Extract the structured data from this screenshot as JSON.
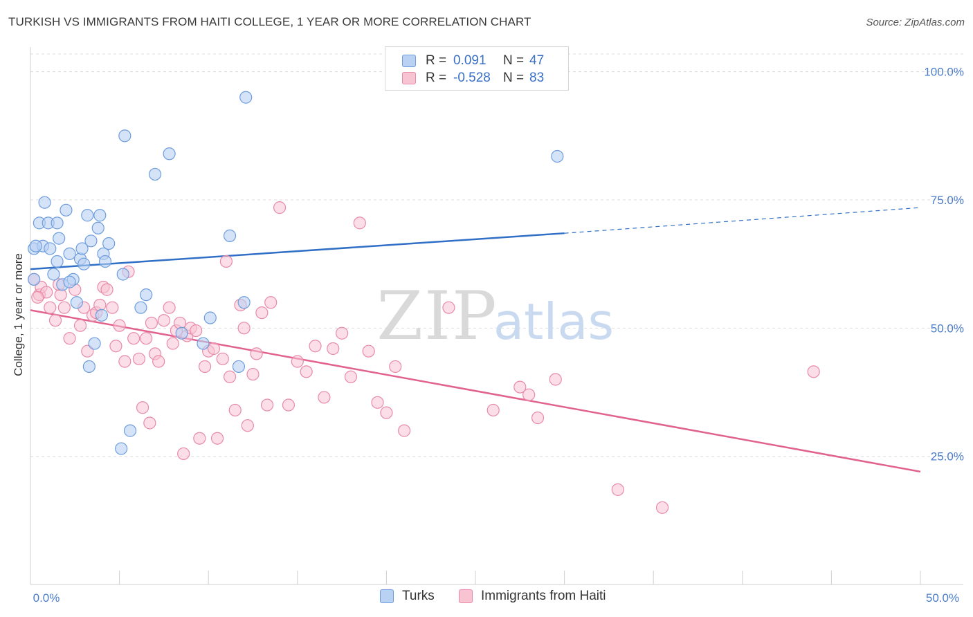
{
  "header": {
    "title": "TURKISH VS IMMIGRANTS FROM HAITI COLLEGE, 1 YEAR OR MORE CORRELATION CHART",
    "source": "Source: ZipAtlas.com"
  },
  "watermark": {
    "zip": "ZIP",
    "atlas": "atlas"
  },
  "legend": {
    "rows": [
      {
        "r_label": "R =",
        "r_value": "0.091",
        "n_label": "N =",
        "n_value": "47"
      },
      {
        "r_label": "R =",
        "r_value": "-0.528",
        "n_label": "N =",
        "n_value": "83"
      }
    ]
  },
  "colors": {
    "turks_fill": "#b9d1f3",
    "turks_stroke": "#6d9ddd",
    "turks_line": "#2f6fc6",
    "haiti_fill": "#f8c3d3",
    "haiti_stroke": "#e88aa8",
    "haiti_line": "#e2628f",
    "grid": "#dcdcdc",
    "tick": "#4a7cc9"
  },
  "chart_data": {
    "type": "scatter",
    "title": "TURKISH VS IMMIGRANTS FROM HAITI COLLEGE, 1 YEAR OR MORE CORRELATION CHART",
    "xlabel": "",
    "ylabel": "College, 1 year or more",
    "xlim": [
      0,
      50
    ],
    "ylim": [
      0,
      105
    ],
    "x_ticks": [
      "0.0%",
      "50.0%"
    ],
    "y_ticks": [
      {
        "value": 25,
        "label": "25.0%"
      },
      {
        "value": 50,
        "label": "50.0%"
      },
      {
        "value": 75,
        "label": "75.0%"
      },
      {
        "value": 100,
        "label": "100.0%"
      }
    ],
    "grid": true,
    "series": [
      {
        "name": "Turks",
        "r": 0.091,
        "n": 47,
        "trend": {
          "x0": 0,
          "y0": 61.5,
          "x1": 30,
          "y1": 68.5,
          "dashed_to_x": 50,
          "dashed_to_y": 73.5
        },
        "points": [
          [
            0.2,
            59.5
          ],
          [
            0.2,
            65.5
          ],
          [
            0.5,
            70.5
          ],
          [
            0.7,
            66
          ],
          [
            0.8,
            74.5
          ],
          [
            1.0,
            70.5
          ],
          [
            1.1,
            65.5
          ],
          [
            1.3,
            60.5
          ],
          [
            1.5,
            63
          ],
          [
            1.6,
            67.5
          ],
          [
            1.8,
            58.5
          ],
          [
            2.0,
            73
          ],
          [
            2.2,
            64.5
          ],
          [
            2.4,
            59.5
          ],
          [
            2.6,
            55
          ],
          [
            2.8,
            63.5
          ],
          [
            2.9,
            65.5
          ],
          [
            3.0,
            62.5
          ],
          [
            3.2,
            72
          ],
          [
            3.3,
            42.5
          ],
          [
            3.4,
            67
          ],
          [
            3.6,
            47
          ],
          [
            3.8,
            69.5
          ],
          [
            3.9,
            72
          ],
          [
            4.0,
            52.5
          ],
          [
            4.1,
            64.5
          ],
          [
            4.2,
            63
          ],
          [
            4.4,
            66.5
          ],
          [
            5.1,
            26.5
          ],
          [
            5.2,
            60.5
          ],
          [
            5.3,
            87.5
          ],
          [
            5.6,
            30
          ],
          [
            6.2,
            54
          ],
          [
            6.5,
            56.5
          ],
          [
            7.0,
            80
          ],
          [
            7.8,
            84
          ],
          [
            8.5,
            49
          ],
          [
            9.7,
            47
          ],
          [
            10.1,
            52
          ],
          [
            11.2,
            68
          ],
          [
            11.7,
            42.5
          ],
          [
            12.0,
            55
          ],
          [
            12.1,
            95
          ],
          [
            29.6,
            83.5
          ],
          [
            0.3,
            66
          ],
          [
            2.2,
            59
          ],
          [
            1.5,
            70.5
          ]
        ]
      },
      {
        "name": "Immigrants from Haiti",
        "r": -0.528,
        "n": 83,
        "trend": {
          "x0": 0,
          "y0": 53.5,
          "x1": 50,
          "y1": 22
        },
        "points": [
          [
            0.2,
            59.5
          ],
          [
            0.5,
            56.5
          ],
          [
            0.6,
            58
          ],
          [
            0.9,
            57
          ],
          [
            1.1,
            54
          ],
          [
            1.4,
            51.5
          ],
          [
            1.7,
            56.5
          ],
          [
            1.9,
            54
          ],
          [
            2.2,
            48
          ],
          [
            2.5,
            57.5
          ],
          [
            2.8,
            50.5
          ],
          [
            3.0,
            54
          ],
          [
            3.2,
            45.5
          ],
          [
            3.5,
            52.5
          ],
          [
            3.7,
            53
          ],
          [
            3.9,
            54.5
          ],
          [
            4.1,
            58
          ],
          [
            4.3,
            57.5
          ],
          [
            4.6,
            54
          ],
          [
            4.8,
            46.5
          ],
          [
            5.0,
            50.5
          ],
          [
            5.3,
            43.5
          ],
          [
            5.5,
            61
          ],
          [
            5.8,
            48
          ],
          [
            6.1,
            44
          ],
          [
            6.3,
            34.5
          ],
          [
            6.5,
            48
          ],
          [
            6.7,
            31.5
          ],
          [
            7.0,
            45
          ],
          [
            7.2,
            43.5
          ],
          [
            7.5,
            51.5
          ],
          [
            7.8,
            54
          ],
          [
            8.0,
            47
          ],
          [
            8.2,
            49.5
          ],
          [
            8.4,
            51
          ],
          [
            8.6,
            25.5
          ],
          [
            8.8,
            48.5
          ],
          [
            9.0,
            50
          ],
          [
            9.3,
            49.5
          ],
          [
            9.5,
            28.5
          ],
          [
            9.8,
            42.5
          ],
          [
            10.0,
            45.5
          ],
          [
            10.3,
            46
          ],
          [
            10.5,
            28.5
          ],
          [
            10.8,
            44
          ],
          [
            11.0,
            63
          ],
          [
            11.2,
            40.5
          ],
          [
            11.5,
            34
          ],
          [
            11.8,
            54.5
          ],
          [
            12.0,
            50
          ],
          [
            12.2,
            31
          ],
          [
            12.5,
            41
          ],
          [
            12.7,
            45
          ],
          [
            13.0,
            53
          ],
          [
            13.3,
            35
          ],
          [
            13.5,
            55
          ],
          [
            14.0,
            73.5
          ],
          [
            14.5,
            35
          ],
          [
            15.0,
            43.5
          ],
          [
            15.5,
            41.5
          ],
          [
            16.0,
            46.5
          ],
          [
            16.5,
            36.5
          ],
          [
            17.0,
            46
          ],
          [
            17.5,
            49
          ],
          [
            18.0,
            40.5
          ],
          [
            18.5,
            70.5
          ],
          [
            19.0,
            45.5
          ],
          [
            19.5,
            35.5
          ],
          [
            20.0,
            33.5
          ],
          [
            20.5,
            42.5
          ],
          [
            21.0,
            30
          ],
          [
            23.5,
            54
          ],
          [
            26.0,
            34
          ],
          [
            27.5,
            38.5
          ],
          [
            28.0,
            37
          ],
          [
            28.5,
            32.5
          ],
          [
            29.5,
            40
          ],
          [
            33.0,
            18.5
          ],
          [
            35.5,
            15
          ],
          [
            44.0,
            41.5
          ],
          [
            0.4,
            56
          ],
          [
            1.6,
            58.5
          ],
          [
            6.8,
            51
          ]
        ]
      }
    ]
  },
  "bottom_legend": [
    {
      "label": "Turks"
    },
    {
      "label": "Immigrants from Haiti"
    }
  ]
}
